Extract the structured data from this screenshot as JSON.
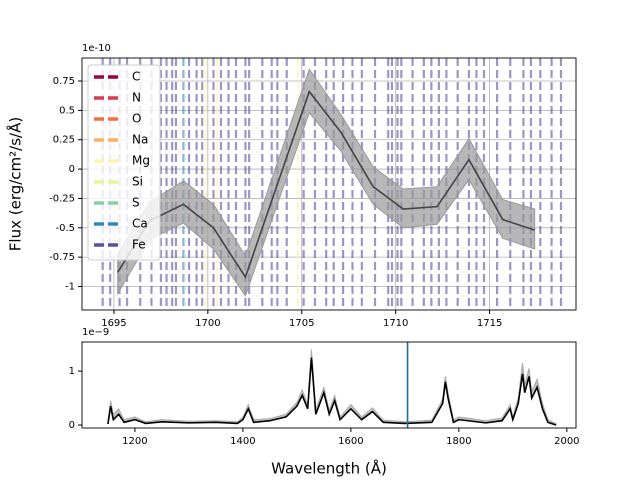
{
  "chart_data": [
    {
      "type": "line",
      "offset_text": "1e-10",
      "ylabel": "Flux (erg/cm²/s/Å)",
      "x": [
        1695.2,
        1696.9,
        1698.7,
        1700.3,
        1702.0,
        1705.4,
        1707.1,
        1708.8,
        1710.4,
        1712.2,
        1713.9,
        1715.7,
        1717.4
      ],
      "values": [
        -0.88,
        -0.44,
        -0.3,
        -0.5,
        -0.92,
        0.66,
        0.31,
        -0.15,
        -0.34,
        -0.32,
        0.08,
        -0.43,
        -0.52
      ],
      "lower": [
        -1.06,
        -0.6,
        -0.46,
        -0.68,
        -1.08,
        0.48,
        0.15,
        -0.3,
        -0.5,
        -0.47,
        -0.09,
        -0.59,
        -0.68
      ],
      "upper": [
        -0.72,
        -0.28,
        -0.1,
        -0.3,
        -0.74,
        0.85,
        0.46,
        0.02,
        -0.17,
        -0.15,
        0.26,
        -0.26,
        -0.34
      ],
      "color": "#444444",
      "band_color": "#999999",
      "xlim": [
        1693.3,
        1719.6
      ],
      "ylim": [
        -1.2,
        0.946
      ],
      "xticks": [
        1695,
        1700,
        1705,
        1710,
        1715
      ],
      "yticks": [
        -1.0,
        -0.75,
        -0.5,
        -0.25,
        0.0,
        0.25,
        0.5,
        0.75
      ],
      "grid": true,
      "legend": "upper left",
      "line_lists": [
        {
          "name": "C",
          "color": "#9e0142",
          "wavelengths": []
        },
        {
          "name": "N",
          "color": "#d53e4f",
          "wavelengths": []
        },
        {
          "name": "O",
          "color": "#f46d43",
          "wavelengths": []
        },
        {
          "name": "Na",
          "color": "#fdae61",
          "wavelengths": []
        },
        {
          "name": "Mg",
          "color": "#fff3a8",
          "wavelengths": [
            1699.9,
            1700.5,
            1704.8
          ]
        },
        {
          "name": "Si",
          "color": "#e6f598",
          "wavelengths": []
        },
        {
          "name": "S",
          "color": "#88d0a4",
          "wavelengths": []
        },
        {
          "name": "Ca",
          "color": "#3288bd",
          "wavelengths": [
            1698.7
          ]
        },
        {
          "name": "Fe",
          "color": "#5e4fa2",
          "wavelengths": [
            1694.4,
            1694.8,
            1695.3,
            1695.7,
            1696.4,
            1697.0,
            1697.5,
            1697.8,
            1698.1,
            1698.3,
            1699.0,
            1699.4,
            1699.7,
            1700.3,
            1700.7,
            1701.1,
            1701.5,
            1702.0,
            1702.2,
            1702.9,
            1703.4,
            1703.7,
            1704.2,
            1705.1,
            1705.7,
            1706.3,
            1706.7,
            1707.2,
            1707.7,
            1708.2,
            1708.9,
            1709.6,
            1709.8,
            1710.1,
            1710.3,
            1710.9,
            1711.5,
            1711.9,
            1712.3,
            1712.7,
            1713.3,
            1713.9,
            1714.3,
            1714.7,
            1715.4,
            1716.1,
            1716.8,
            1717.2,
            1717.7,
            1718.3,
            1718.8
          ]
        }
      ]
    },
    {
      "type": "line",
      "offset_text": "1e−9",
      "xlabel": "Wavelength (Å)",
      "x": [
        1150,
        1155,
        1160,
        1170,
        1180,
        1200,
        1220,
        1250,
        1300,
        1350,
        1390,
        1400,
        1410,
        1420,
        1450,
        1480,
        1500,
        1510,
        1520,
        1527,
        1535,
        1550,
        1560,
        1570,
        1580,
        1600,
        1620,
        1640,
        1660,
        1700,
        1750,
        1770,
        1775,
        1780,
        1790,
        1800,
        1850,
        1880,
        1895,
        1900,
        1910,
        1918,
        1922,
        1930,
        1935,
        1945,
        1955,
        1965,
        1980
      ],
      "values": [
        0.02,
        0.35,
        0.1,
        0.2,
        0.05,
        0.1,
        0.03,
        0.06,
        0.04,
        0.05,
        0.03,
        0.1,
        0.3,
        0.05,
        0.08,
        0.15,
        0.35,
        0.55,
        0.3,
        1.25,
        0.2,
        0.6,
        0.2,
        0.45,
        0.1,
        0.3,
        0.1,
        0.25,
        0.05,
        0.03,
        0.05,
        0.4,
        0.8,
        0.5,
        0.05,
        0.1,
        0.04,
        0.08,
        0.3,
        0.1,
        0.4,
        0.95,
        0.6,
        0.9,
        0.5,
        0.7,
        0.3,
        0.05,
        0.0
      ],
      "upper": [
        0.05,
        0.45,
        0.2,
        0.3,
        0.1,
        0.15,
        0.06,
        0.1,
        0.07,
        0.08,
        0.06,
        0.15,
        0.38,
        0.1,
        0.12,
        0.2,
        0.42,
        0.65,
        0.38,
        1.4,
        0.28,
        0.7,
        0.28,
        0.55,
        0.15,
        0.38,
        0.15,
        0.32,
        0.09,
        0.06,
        0.09,
        0.48,
        0.9,
        0.6,
        0.1,
        0.15,
        0.08,
        0.13,
        0.38,
        0.15,
        0.5,
        1.15,
        0.75,
        1.05,
        0.62,
        0.85,
        0.4,
        0.1,
        0.03
      ],
      "color": "#000000",
      "band_color": "#aaaaaa",
      "marker_x": 1705,
      "marker_color": "#1f6f9f",
      "xlim": [
        1102,
        2017
      ],
      "ylim": [
        -0.055,
        1.54
      ],
      "xticks": [
        1200,
        1400,
        1600,
        1800,
        2000
      ],
      "yticks": [
        0,
        1
      ]
    }
  ]
}
